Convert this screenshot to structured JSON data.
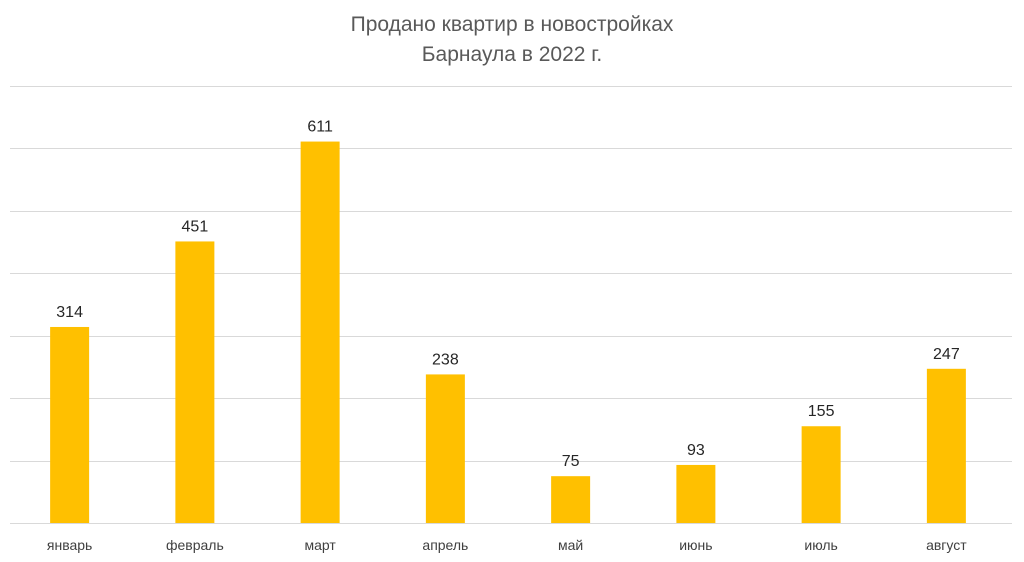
{
  "colors": {
    "bar": "#FFC000",
    "grid": "#D9D9D9",
    "title": "#595959",
    "tick_label": "#404040",
    "data_label": "#262626"
  },
  "chart_data": {
    "type": "bar",
    "title": "Продано квартир в новостройках",
    "subtitle": "Барнаула в 2022 г.",
    "xlabel": "",
    "ylabel": "",
    "categories": [
      "январь",
      "февраль",
      "март",
      "апрель",
      "май",
      "июнь",
      "июль",
      "август"
    ],
    "values": [
      314,
      451,
      611,
      238,
      75,
      93,
      155,
      247
    ],
    "ylim": [
      0,
      700
    ],
    "grid": true,
    "legend": "none"
  }
}
